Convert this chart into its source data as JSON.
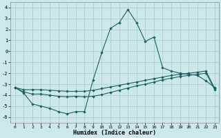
{
  "xlabel": "Humidex (Indice chaleur)",
  "background_color": "#cce8e8",
  "grid_color": "#aacece",
  "line_color": "#1a6060",
  "xlim": [
    -0.5,
    23.5
  ],
  "ylim": [
    -6.5,
    4.5
  ],
  "yticks": [
    -6,
    -5,
    -4,
    -3,
    -2,
    -1,
    0,
    1,
    2,
    3,
    4
  ],
  "xticks": [
    0,
    1,
    2,
    3,
    4,
    5,
    6,
    7,
    8,
    9,
    10,
    11,
    12,
    13,
    14,
    15,
    16,
    17,
    18,
    19,
    20,
    21,
    22,
    23
  ],
  "curve1_x": [
    0,
    1,
    2,
    3,
    4,
    5,
    6,
    7,
    8,
    9,
    10,
    11,
    12,
    13,
    14,
    15,
    16,
    17,
    18,
    19,
    20,
    21,
    22,
    23
  ],
  "curve1_y": [
    -3.3,
    -3.8,
    -4.8,
    -5.0,
    -5.2,
    -5.5,
    -5.7,
    -5.5,
    -5.5,
    -2.6,
    -0.1,
    2.1,
    2.6,
    3.8,
    2.6,
    0.9,
    1.3,
    -1.5,
    -1.8,
    -2.0,
    -2.1,
    -2.2,
    -2.7,
    -3.3
  ],
  "curve2_x": [
    0,
    1,
    2,
    3,
    4,
    5,
    6,
    7,
    8,
    9,
    10,
    11,
    12,
    13,
    14,
    15,
    16,
    17,
    18,
    19,
    20,
    21,
    22,
    23
  ],
  "curve2_y": [
    -3.3,
    -3.5,
    -3.5,
    -3.5,
    -3.55,
    -3.6,
    -3.65,
    -3.65,
    -3.65,
    -3.55,
    -3.4,
    -3.25,
    -3.1,
    -2.95,
    -2.8,
    -2.65,
    -2.5,
    -2.35,
    -2.2,
    -2.1,
    -2.0,
    -1.9,
    -1.8,
    -3.4
  ],
  "curve3_x": [
    0,
    1,
    2,
    3,
    4,
    5,
    6,
    7,
    8,
    9,
    10,
    11,
    12,
    13,
    14,
    15,
    16,
    17,
    18,
    19,
    20,
    21,
    22,
    23
  ],
  "curve3_y": [
    -3.3,
    -3.7,
    -3.9,
    -3.9,
    -4.0,
    -4.1,
    -4.15,
    -4.1,
    -4.15,
    -4.1,
    -3.95,
    -3.75,
    -3.55,
    -3.35,
    -3.15,
    -3.0,
    -2.8,
    -2.6,
    -2.45,
    -2.3,
    -2.2,
    -2.1,
    -2.0,
    -3.5
  ]
}
